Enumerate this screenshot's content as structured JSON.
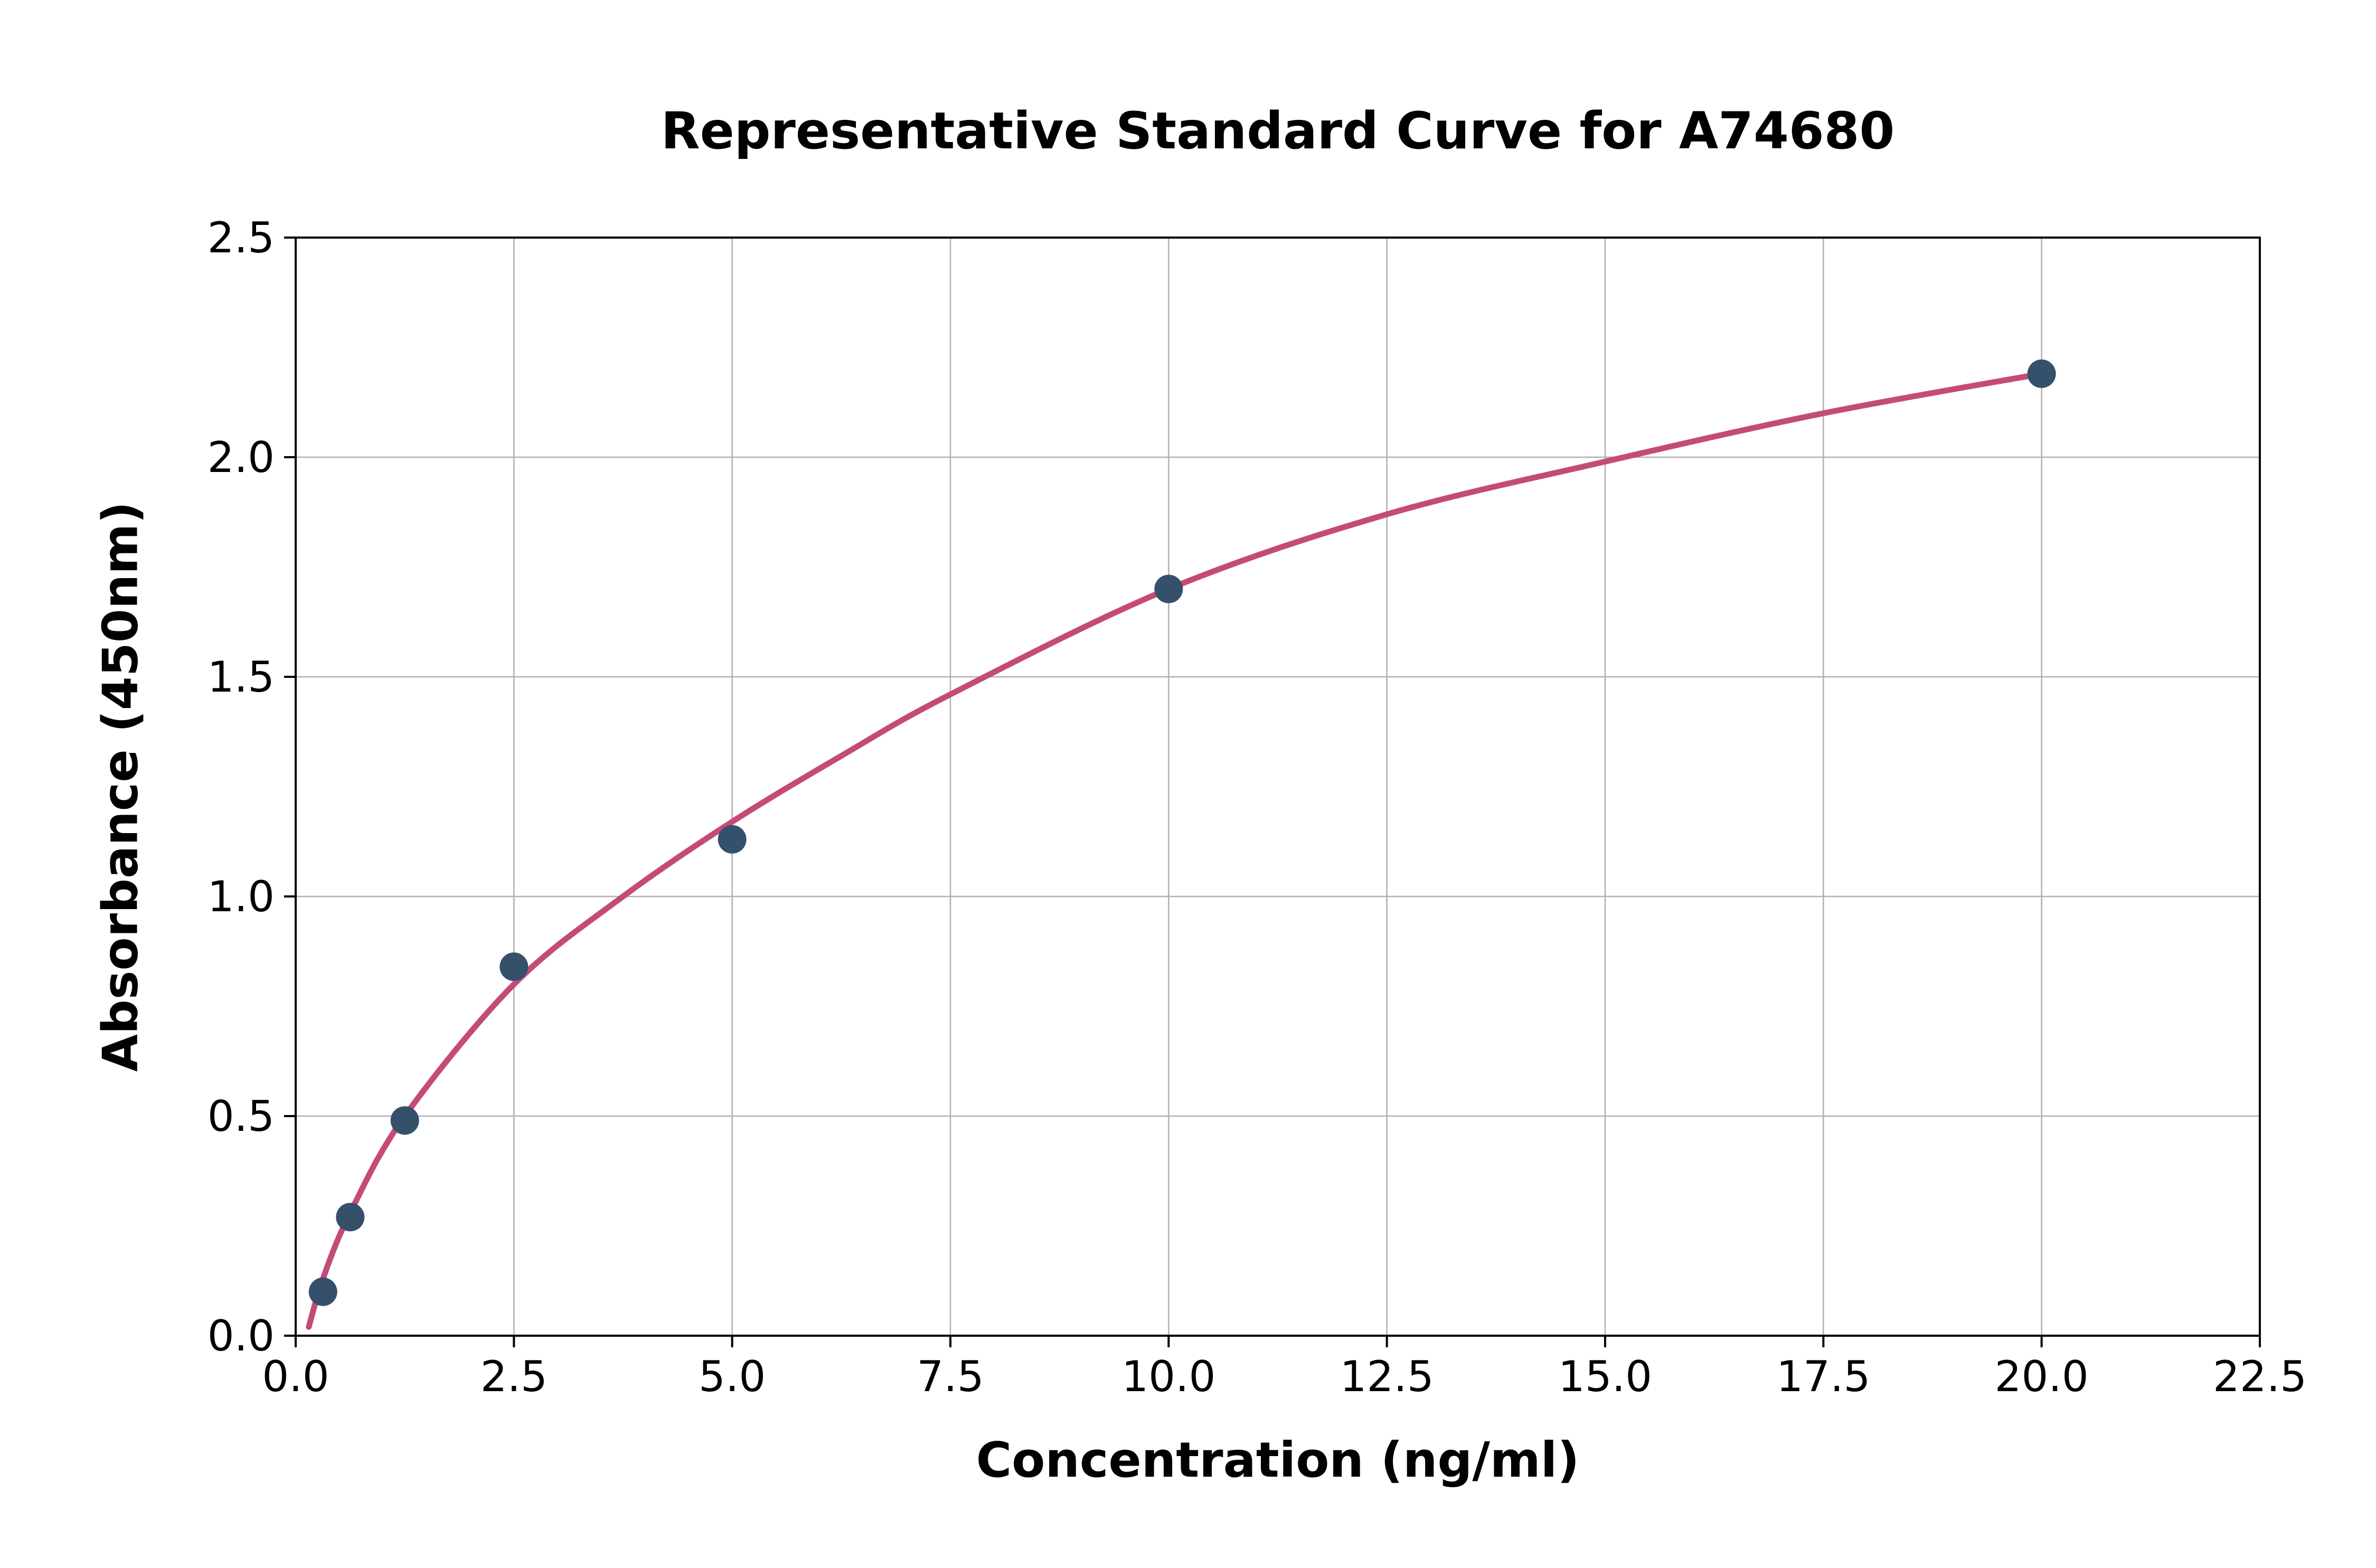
{
  "chart_data": {
    "type": "scatter",
    "title": "Representative Standard Curve for A74680",
    "xlabel": "Concentration (ng/ml)",
    "ylabel": "Absorbance (450nm)",
    "xlim": [
      0,
      22.5
    ],
    "ylim": [
      0,
      2.5
    ],
    "xticks": [
      0.0,
      2.5,
      5.0,
      7.5,
      10.0,
      12.5,
      15.0,
      17.5,
      20.0,
      22.5
    ],
    "xtick_labels": [
      "0.0",
      "2.5",
      "5.0",
      "7.5",
      "10.0",
      "12.5",
      "15.0",
      "17.5",
      "20.0",
      "22.5"
    ],
    "yticks": [
      0.0,
      0.5,
      1.0,
      1.5,
      2.0,
      2.5
    ],
    "ytick_labels": [
      "0.0",
      "0.5",
      "1.0",
      "1.5",
      "2.0",
      "2.5"
    ],
    "grid": true,
    "legend_position": "none",
    "points": {
      "x": [
        0.313,
        0.625,
        1.25,
        2.5,
        5.0,
        10.0,
        20.0
      ],
      "y": [
        0.1,
        0.27,
        0.49,
        0.84,
        1.13,
        1.7,
        2.19
      ]
    },
    "fit_curve": [
      [
        0.15,
        0.02
      ],
      [
        0.313,
        0.13
      ],
      [
        0.625,
        0.28
      ],
      [
        1.25,
        0.5
      ],
      [
        2.5,
        0.8
      ],
      [
        3.75,
        1.0
      ],
      [
        5.0,
        1.17
      ],
      [
        6.25,
        1.32
      ],
      [
        7.5,
        1.46
      ],
      [
        10.0,
        1.7
      ],
      [
        12.5,
        1.87
      ],
      [
        15.0,
        1.99
      ],
      [
        17.5,
        2.1
      ],
      [
        20.0,
        2.19
      ]
    ],
    "colors": {
      "point": "#35506b",
      "curve": "#c44b78",
      "grid": "#b0b0b0",
      "axis": "#000000",
      "background": "#ffffff"
    }
  }
}
